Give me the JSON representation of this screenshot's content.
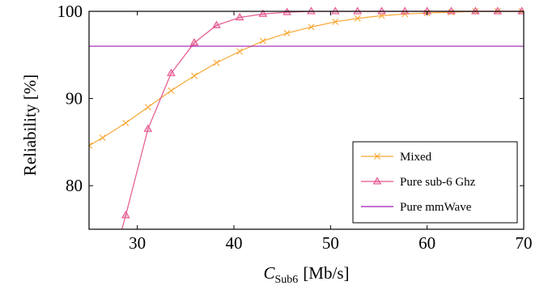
{
  "chart_data": {
    "type": "line",
    "xlabel": {
      "var": "C",
      "sub": "Sub6",
      "unit": "[Mb/s]"
    },
    "ylabel": "Reliability [%]",
    "xlim": [
      25,
      70
    ],
    "ylim": [
      75,
      100
    ],
    "xticks": [
      30,
      40,
      50,
      60,
      70
    ],
    "yticks": [
      80,
      90,
      100
    ],
    "grid": false,
    "legend_position": "bottom-right",
    "colors": {
      "mixed": "#f8a834",
      "sub6": "#e4568e",
      "mmwave": "#9d1db4"
    },
    "series": [
      {
        "name": "Mixed",
        "marker": "x",
        "x": [
          25.0,
          26.4,
          28.8,
          31.1,
          33.5,
          35.9,
          38.2,
          40.6,
          43.0,
          45.5,
          48.0,
          50.5,
          52.8,
          55.3,
          57.7,
          60.0,
          62.5,
          65.0,
          67.3,
          69.8
        ],
        "y": [
          84.6,
          85.5,
          87.2,
          89.0,
          90.9,
          92.6,
          94.1,
          95.4,
          96.6,
          97.5,
          98.2,
          98.8,
          99.2,
          99.5,
          99.7,
          99.8,
          99.9,
          100.0,
          100.0,
          100.0
        ]
      },
      {
        "name": "Pure sub-6 Ghz",
        "marker": "triangle",
        "x": [
          28.4,
          28.8,
          31.1,
          33.5,
          35.9,
          38.2,
          40.6,
          43.0,
          45.5,
          48.0,
          50.5,
          52.8,
          55.3,
          57.7,
          60.0,
          62.5,
          65.0,
          67.3,
          69.8
        ],
        "y": [
          75.0,
          76.6,
          86.5,
          92.9,
          96.4,
          98.4,
          99.3,
          99.7,
          99.9,
          100.0,
          100.0,
          100.0,
          100.0,
          100.0,
          100.0,
          100.0,
          100.0,
          100.0,
          100.0
        ]
      },
      {
        "name": "Pure mmWave",
        "marker": "none",
        "x": [
          25,
          70
        ],
        "y": [
          96,
          96
        ]
      }
    ]
  }
}
